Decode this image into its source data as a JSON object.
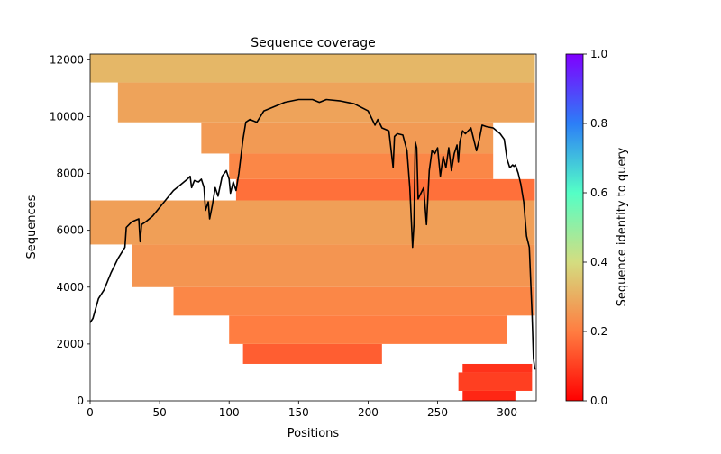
{
  "chart_data": {
    "type": "heatmap",
    "title": "Sequence coverage",
    "xlabel": "Positions",
    "ylabel": "Sequences",
    "xlim": [
      0,
      321
    ],
    "ylim": [
      0,
      12200
    ],
    "xticks": [
      0,
      50,
      100,
      150,
      200,
      250,
      300
    ],
    "yticks": [
      0,
      2000,
      4000,
      6000,
      8000,
      10000,
      12000
    ],
    "colorbar": {
      "label": "Sequence identity to query",
      "range": [
        0.0,
        1.0
      ],
      "ticks": [
        0.0,
        0.2,
        0.4,
        0.6,
        0.8,
        1.0
      ],
      "colormap": "rainbow_r"
    },
    "heatmap_bands": [
      {
        "y": [
          0,
          350
        ],
        "x": [
          268,
          306
        ],
        "identity": 0.06
      },
      {
        "y": [
          350,
          1000
        ],
        "x": [
          265,
          318
        ],
        "identity": 0.1
      },
      {
        "y": [
          1000,
          1300
        ],
        "x": [
          268,
          318
        ],
        "identity": 0.08
      },
      {
        "y": [
          1300,
          2000
        ],
        "x": [
          110,
          210
        ],
        "identity": 0.15
      },
      {
        "y": [
          2000,
          3000
        ],
        "x": [
          100,
          300
        ],
        "identity": 0.2
      },
      {
        "y": [
          3000,
          4000
        ],
        "x": [
          60,
          320
        ],
        "identity": 0.22
      },
      {
        "y": [
          4000,
          5500
        ],
        "x": [
          30,
          320
        ],
        "identity": 0.25
      },
      {
        "y": [
          5500,
          7050
        ],
        "x": [
          0,
          320
        ],
        "identity": 0.27
      },
      {
        "y": [
          7050,
          7800
        ],
        "x": [
          105,
          320
        ],
        "identity": 0.18
      },
      {
        "y": [
          7800,
          8700
        ],
        "x": [
          100,
          290
        ],
        "identity": 0.22
      },
      {
        "y": [
          8700,
          9800
        ],
        "x": [
          80,
          290
        ],
        "identity": 0.26
      },
      {
        "y": [
          9800,
          11200
        ],
        "x": [
          20,
          320
        ],
        "identity": 0.28
      },
      {
        "y": [
          11200,
          12200
        ],
        "x": [
          0,
          320
        ],
        "identity": 0.32
      }
    ],
    "coverage_line": {
      "x": [
        0,
        2,
        6,
        10,
        15,
        20,
        25,
        26,
        30,
        35,
        36,
        37,
        40,
        45,
        50,
        55,
        60,
        65,
        70,
        72,
        73,
        75,
        78,
        80,
        82,
        83,
        85,
        86,
        88,
        90,
        92,
        95,
        98,
        100,
        101,
        103,
        105,
        107,
        110,
        112,
        115,
        120,
        125,
        130,
        140,
        150,
        160,
        165,
        170,
        180,
        190,
        200,
        205,
        207,
        210,
        215,
        218,
        219,
        221,
        225,
        228,
        230,
        232,
        233,
        234,
        235,
        236,
        238,
        240,
        242,
        244,
        246,
        248,
        250,
        252,
        254,
        256,
        258,
        260,
        262,
        264,
        265,
        266,
        268,
        270,
        274,
        278,
        280,
        282,
        285,
        290,
        295,
        298,
        300,
        302,
        304,
        305,
        306,
        308,
        310,
        312,
        314,
        316,
        318,
        319,
        320
      ],
      "y": [
        2750,
        2900,
        3600,
        3900,
        4500,
        5000,
        5400,
        6100,
        6300,
        6400,
        5600,
        6200,
        6300,
        6500,
        6800,
        7100,
        7400,
        7600,
        7800,
        7900,
        7500,
        7750,
        7700,
        7800,
        7500,
        6700,
        7000,
        6400,
        6900,
        7500,
        7200,
        7900,
        8100,
        7800,
        7300,
        7700,
        7400,
        8000,
        9200,
        9800,
        9900,
        9800,
        10200,
        10300,
        10500,
        10600,
        10600,
        10500,
        10600,
        10550,
        10450,
        10200,
        9700,
        9900,
        9600,
        9500,
        8200,
        9300,
        9400,
        9350,
        8800,
        7500,
        5400,
        6200,
        9100,
        8900,
        7100,
        7300,
        7500,
        6200,
        8100,
        8800,
        8700,
        8900,
        7900,
        8600,
        8200,
        8900,
        8100,
        8700,
        9000,
        8400,
        9100,
        9500,
        9400,
        9600,
        8800,
        9200,
        9700,
        9650,
        9600,
        9400,
        9200,
        8500,
        8200,
        8300,
        8250,
        8300,
        8000,
        7600,
        7000,
        5800,
        5400,
        3000,
        1500,
        1100
      ]
    }
  }
}
